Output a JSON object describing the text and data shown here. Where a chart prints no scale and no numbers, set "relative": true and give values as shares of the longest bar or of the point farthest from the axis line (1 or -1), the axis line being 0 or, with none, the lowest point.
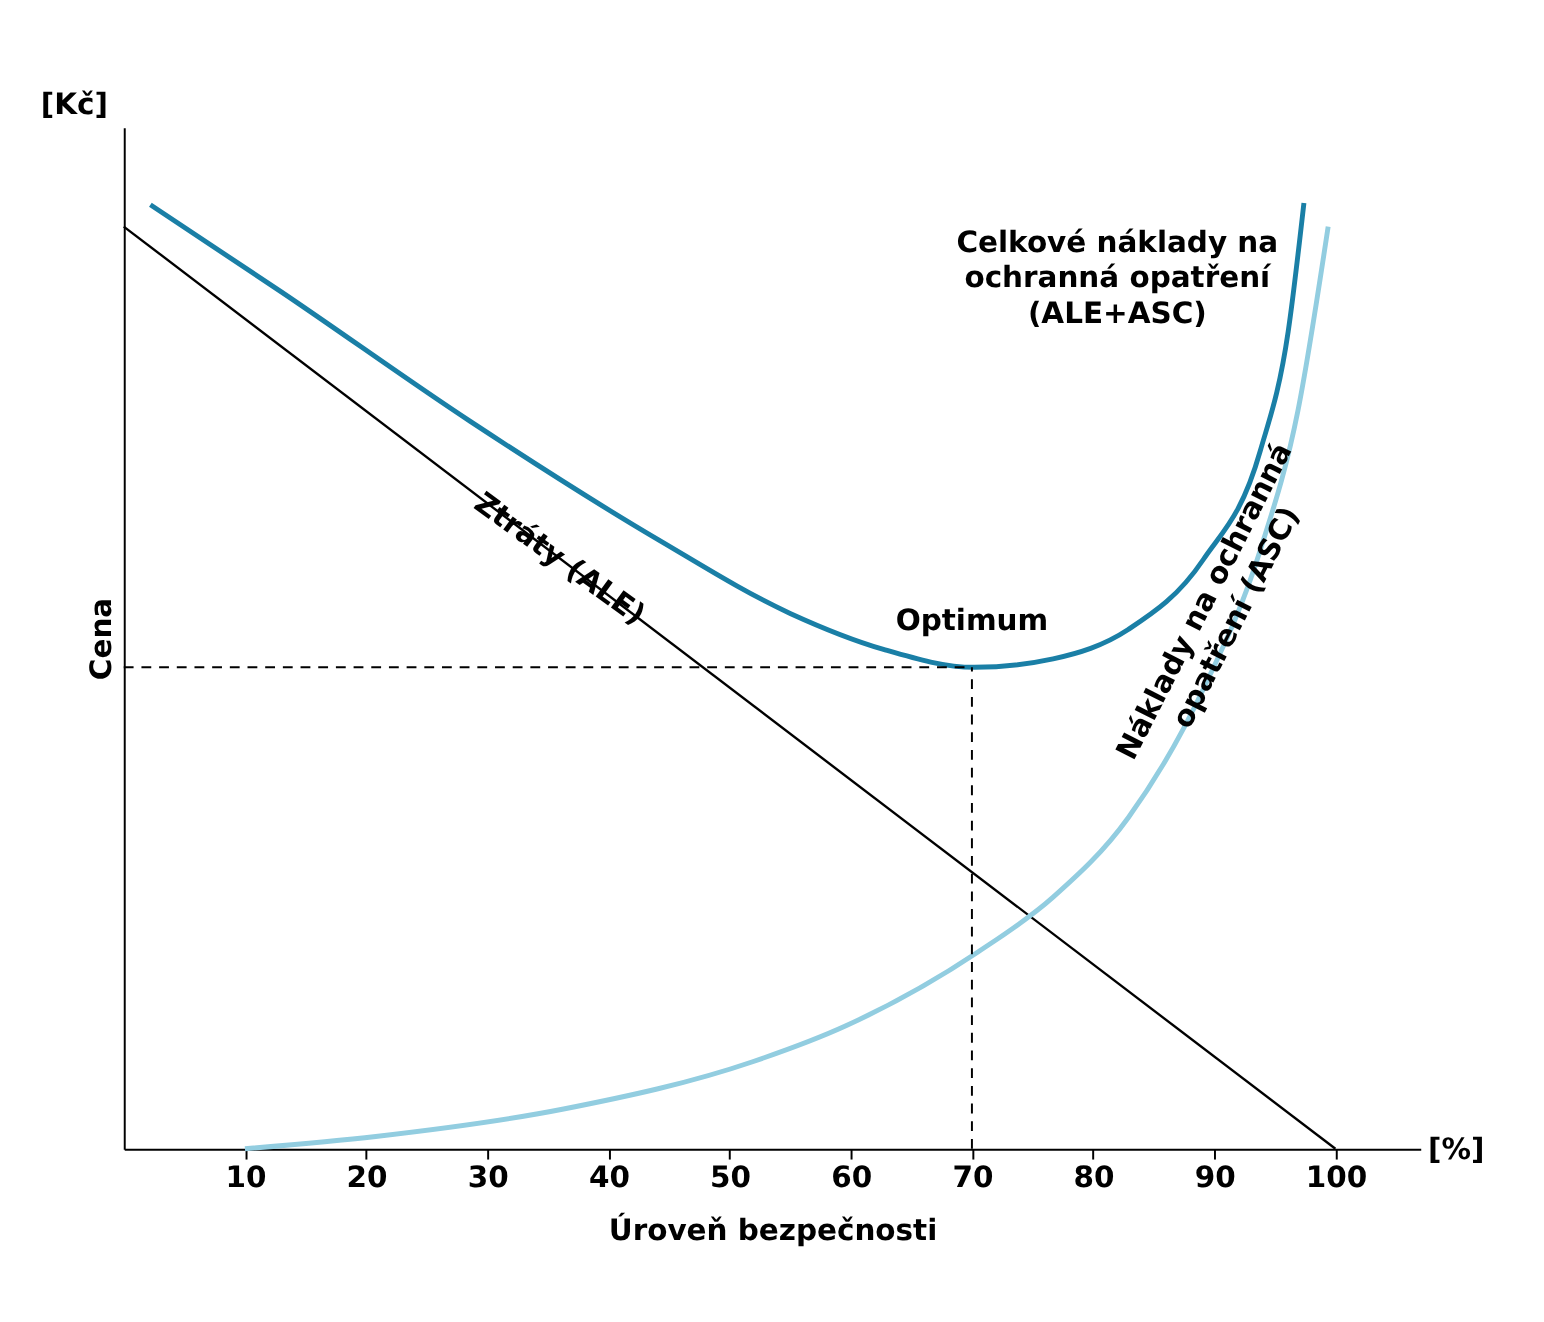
{
  "chart_data": {
    "type": "line",
    "relative": true,
    "xlabel": "Úroveň bezpečnosti",
    "ylabel": "Cena",
    "xlim": [
      0,
      107
    ],
    "xticks": [
      10,
      20,
      30,
      40,
      50,
      60,
      70,
      80,
      90,
      100
    ],
    "grid": false,
    "legend": false,
    "annotations": [
      "[Kč]",
      "[%]",
      {
        "text": "Optimum",
        "x": 70,
        "y": 0.509
      }
    ],
    "ref_lines": [
      {
        "axis": "x",
        "value": 70,
        "line_style": "dashed",
        "color": "#000000"
      },
      {
        "axis": "y",
        "value": 0.509,
        "line_style": "dashed",
        "color": "#000000"
      }
    ],
    "series": [
      {
        "name": "Celkové náklady na ochranná opatření (ALE+ASC)",
        "color": "#1a7fa6",
        "x": [
          2.2,
          13,
          28.6,
          44.1,
          55,
          62.7,
          70.2,
          76.7,
          82.9,
          89.1,
          93.8,
          96.1,
          97.4
        ],
        "values": [
          0.998,
          0.906,
          0.769,
          0.644,
          0.566,
          0.528,
          0.509,
          0.518,
          0.549,
          0.623,
          0.738,
          0.864,
          1
        ]
      },
      {
        "name": "Ztráty (ALE)",
        "color": "#000000",
        "x": [
          0,
          100
        ],
        "values": [
          0.975,
          0
        ]
      },
      {
        "name": "Náklady na ochranná opatření (ASC)",
        "color": "#92cde0",
        "x": [
          10,
          20.8,
          36.3,
          51.9,
          59.6,
          70.5,
          76.7,
          82.9,
          89.1,
          93.8,
          96.9,
          99.4
        ],
        "values": [
          0,
          0.013,
          0.042,
          0.092,
          0.13,
          0.208,
          0.266,
          0.35,
          0.486,
          0.633,
          0.78,
          0.975
        ]
      }
    ]
  }
}
